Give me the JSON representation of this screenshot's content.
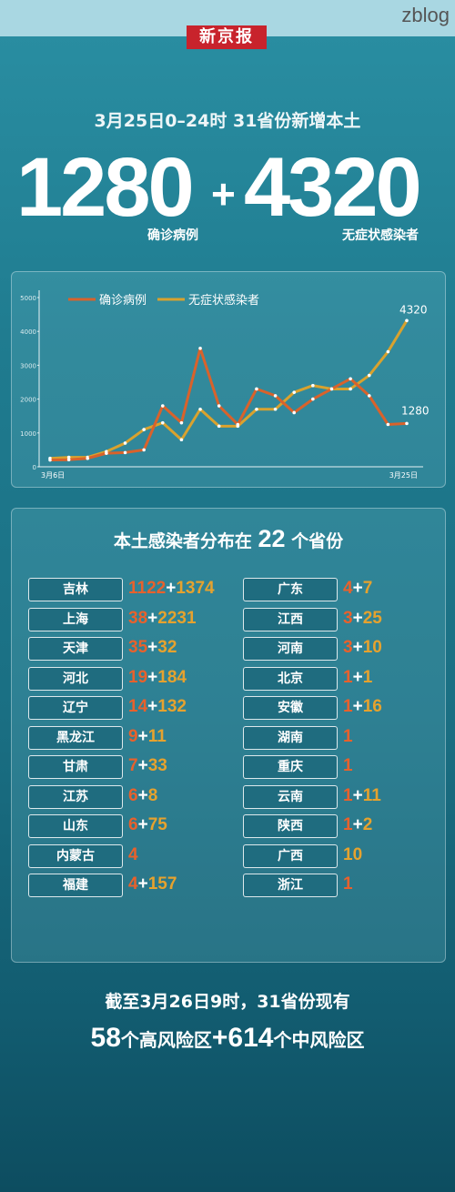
{
  "watermark": "zblog",
  "logo": "新京报",
  "headline": "3月25日0–24时    31省份新增本土",
  "totals": {
    "confirmed": "1280",
    "plus": "+",
    "asymptomatic": "4320",
    "confirmed_label": "确诊病例",
    "asymptomatic_label": "无症状感染者"
  },
  "colors": {
    "confirmed": "#d9622b",
    "asymptomatic": "#d9a22e"
  },
  "chart_data": {
    "type": "line",
    "x": [
      "3月6日",
      "3月7日",
      "3月8日",
      "3月9日",
      "3月10日",
      "3月11日",
      "3月12日",
      "3月13日",
      "3月14日",
      "3月15日",
      "3月16日",
      "3月17日",
      "3月18日",
      "3月19日",
      "3月20日",
      "3月21日",
      "3月22日",
      "3月23日",
      "3月24日",
      "3月25日"
    ],
    "x_tick_labels": [
      "3月6日",
      "3月25日"
    ],
    "yticks": [
      "0",
      "1000",
      "2000",
      "3000",
      "4000",
      "5000"
    ],
    "ylim": [
      0,
      5000
    ],
    "legend": "top-left",
    "series": [
      {
        "name": "确诊病例",
        "values": [
          200,
          210,
          250,
          400,
          420,
          500,
          1800,
          1300,
          3500,
          1800,
          1250,
          2300,
          2100,
          1600,
          2000,
          2300,
          2600,
          2100,
          1250,
          1280
        ]
      },
      {
        "name": "无症状感染者",
        "values": [
          250,
          280,
          280,
          450,
          700,
          1100,
          1300,
          800,
          1700,
          1200,
          1200,
          1700,
          1700,
          2200,
          2400,
          2300,
          2300,
          2700,
          3400,
          4320
        ]
      }
    ],
    "end_labels": {
      "confirmed": "1280",
      "asymptomatic": "4320"
    }
  },
  "dist": {
    "title_pre": "本土感染者分布在",
    "count": "22",
    "title_post": "个省份",
    "left": [
      {
        "name": "吉林",
        "c": "1122",
        "a": "1374"
      },
      {
        "name": "上海",
        "c": "38",
        "a": "2231"
      },
      {
        "name": "天津",
        "c": "35",
        "a": "32"
      },
      {
        "name": "河北",
        "c": "19",
        "a": "184"
      },
      {
        "name": "辽宁",
        "c": "14",
        "a": "132"
      },
      {
        "name": "黑龙江",
        "c": "9",
        "a": "11"
      },
      {
        "name": "甘肃",
        "c": "7",
        "a": "33"
      },
      {
        "name": "江苏",
        "c": "6",
        "a": "8"
      },
      {
        "name": "山东",
        "c": "6",
        "a": "75"
      },
      {
        "name": "内蒙古",
        "c": "4",
        "a": ""
      },
      {
        "name": "福建",
        "c": "4",
        "a": "157"
      }
    ],
    "right": [
      {
        "name": "广东",
        "c": "4",
        "a": "7"
      },
      {
        "name": "江西",
        "c": "3",
        "a": "25"
      },
      {
        "name": "河南",
        "c": "3",
        "a": "10"
      },
      {
        "name": "北京",
        "c": "1",
        "a": "1"
      },
      {
        "name": "安徽",
        "c": "1",
        "a": "16"
      },
      {
        "name": "湖南",
        "c": "1",
        "a": ""
      },
      {
        "name": "重庆",
        "c": "1",
        "a": ""
      },
      {
        "name": "云南",
        "c": "1",
        "a": "11"
      },
      {
        "name": "陕西",
        "c": "1",
        "a": "2"
      },
      {
        "name": "广西",
        "c": "",
        "a": "10"
      },
      {
        "name": "浙江",
        "c": "1",
        "a": ""
      }
    ]
  },
  "footer": {
    "line1": "截至3月26日9时，31省份现有",
    "high_count": "58",
    "high_label": "个高风险区",
    "plus": "+",
    "mid_count": "614",
    "mid_label": "个中风险区"
  }
}
